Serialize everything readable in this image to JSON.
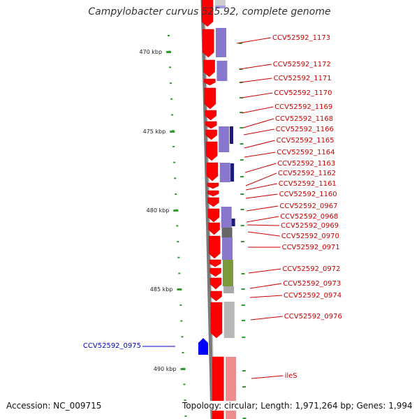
{
  "title": "Campylobacter curvus 525.92, complete genome",
  "footer": {
    "accession": "Accession: NC_009715",
    "topology": "Topology: circular; Length: 1,971,264 bp; Genes: 1,994"
  },
  "colors": {
    "forward_gene": "#ff0000",
    "reverse_gene": "#0000ff",
    "label_forward": "#cc0000",
    "label_reverse": "#0000cc",
    "cog_lavender": "#7b68c8",
    "cog_navy": "#1a1a7a",
    "cog_olive": "#6b8e23",
    "cog_gray": "#b0b0b0",
    "rrna_pink": "#f08080",
    "tick_green": "#339933"
  },
  "axis_labels": [
    "470 kbp",
    "475 kbp",
    "480 kbp",
    "485 kbp",
    "490 kbp"
  ],
  "gene_labels": [
    "CCV52592_1173",
    "CCV52592_1172",
    "CCV52592_1171",
    "CCV52592_1170",
    "CCV52592_1169",
    "CCV52592_1168",
    "CCV52592_1166",
    "CCV52592_1165",
    "CCV52592_1164",
    "CCV52592_1163",
    "CCV52592_1162",
    "CCV52592_1161",
    "CCV52592_1160",
    "CCV52592_0967",
    "CCV52592_0968",
    "CCV52592_0969",
    "CCV52592_0970",
    "CCV52592_0971",
    "CCV52592_0972",
    "CCV52592_0973",
    "CCV52592_0974",
    "CCV52592_0976",
    "ileS"
  ],
  "reverse_label": "CCV52592_0975"
}
